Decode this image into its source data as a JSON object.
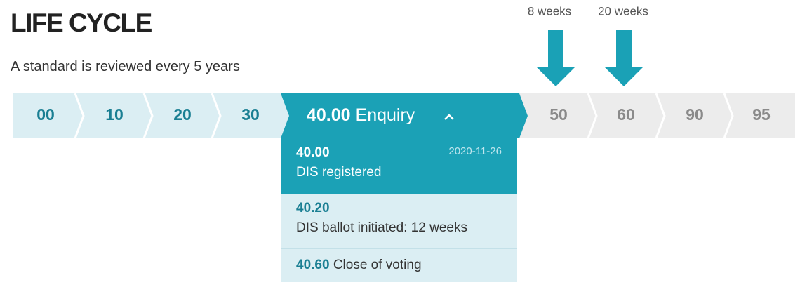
{
  "header": {
    "title": "LIFE CYCLE",
    "subtitle": "A standard is reviewed every 5 years"
  },
  "durations": [
    "8 weeks",
    "20 weeks"
  ],
  "stages": [
    "00",
    "10",
    "20",
    "30",
    "50",
    "60",
    "90",
    "95"
  ],
  "active_stage": {
    "code": "40.00",
    "name": "Enquiry"
  },
  "substages": [
    {
      "code": "40.00",
      "label": "DIS registered",
      "date": "2020-11-26"
    },
    {
      "code": "40.20",
      "label": "DIS ballot initiated: 12 weeks"
    },
    {
      "code": "40.60",
      "label": "Close of voting"
    }
  ]
}
